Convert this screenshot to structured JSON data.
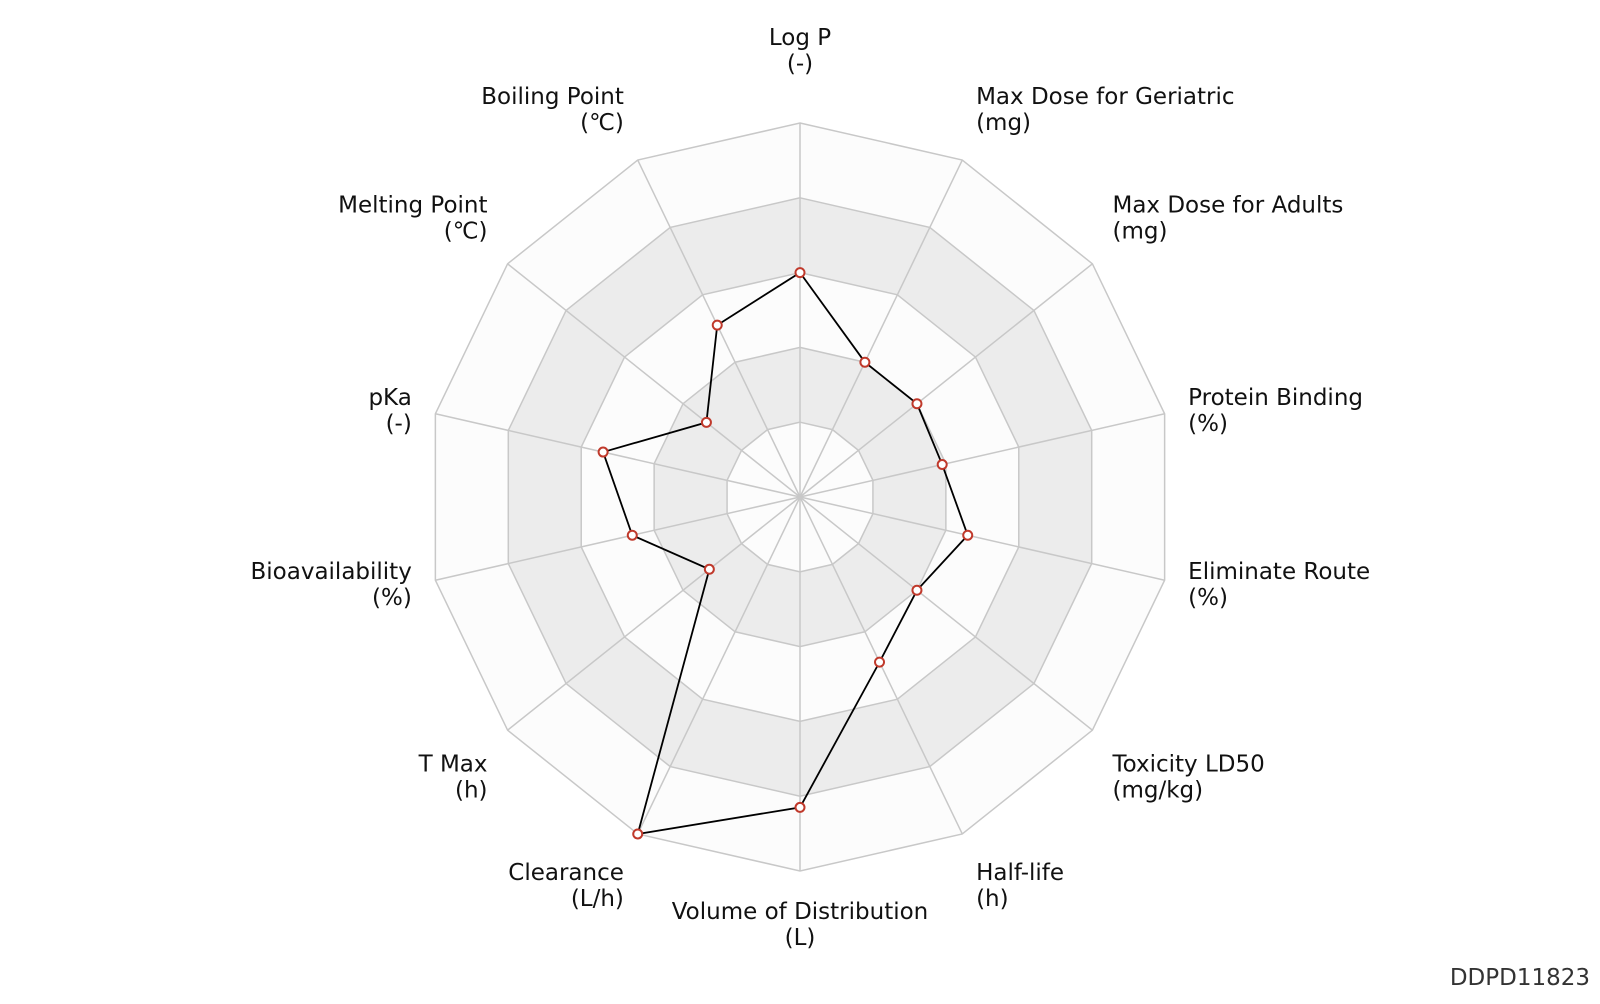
{
  "chart_data": {
    "type": "radar",
    "categories": [
      "Log P",
      "Max Dose for Geriatric",
      "Max Dose for Adults",
      "Protein Binding",
      "Eliminate Route",
      "Toxicity LD50",
      "Half-life",
      "Volume of Distribution",
      "Clearance",
      "T Max",
      "Bioavailability",
      "pKa",
      "Melting Point",
      "Boiling Point"
    ],
    "units": [
      "(-)",
      "(mg)",
      "(mg)",
      "(%)",
      "(%)",
      "(mg/kg)",
      "(h)",
      "(L)",
      "(L/h)",
      "(h)",
      "(%)",
      "(-)",
      "(℃)",
      "(℃)"
    ],
    "values": [
      0.6,
      0.4,
      0.4,
      0.39,
      0.46,
      0.4,
      0.49,
      0.83,
      1.0,
      0.31,
      0.46,
      0.54,
      0.32,
      0.51
    ],
    "color": "#000000",
    "marker_color": "#c0392b",
    "rlim": [
      0,
      1
    ],
    "rticks": [
      0.2,
      0.4,
      0.6,
      0.8,
      1.0
    ],
    "grid": true
  },
  "footer": "DDPD11823"
}
